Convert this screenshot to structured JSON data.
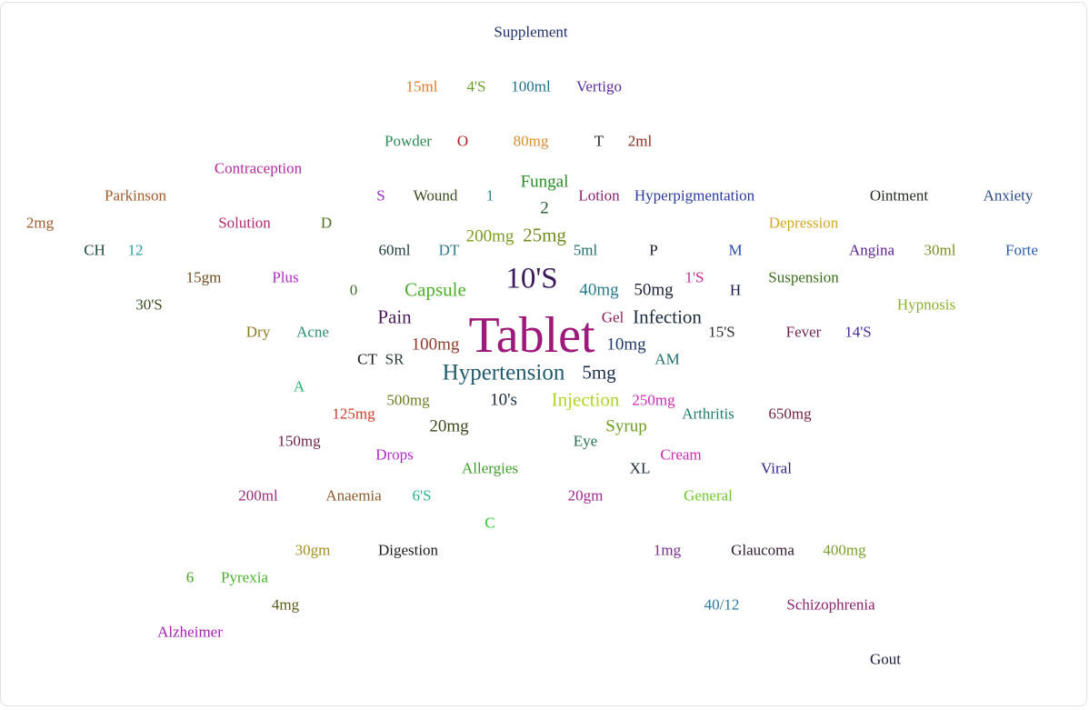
{
  "word_cloud": {
    "words": [
      {
        "text": "Supplement",
        "weight": 1,
        "color": "#1f2f6e"
      },
      {
        "text": "15ml",
        "weight": 1,
        "color": "#e07a1f"
      },
      {
        "text": "4'S",
        "weight": 1,
        "color": "#6b9e2a"
      },
      {
        "text": "100ml",
        "weight": 1,
        "color": "#1f6e8c"
      },
      {
        "text": "Vertigo",
        "weight": 1,
        "color": "#5a2a9e"
      },
      {
        "text": "Powder",
        "weight": 1,
        "color": "#2a8c55"
      },
      {
        "text": "O",
        "weight": 1,
        "color": "#b02020"
      },
      {
        "text": "80mg",
        "weight": 1,
        "color": "#e08a2a"
      },
      {
        "text": "T",
        "weight": 1,
        "color": "#222222"
      },
      {
        "text": "2ml",
        "weight": 1,
        "color": "#8c2a1f"
      },
      {
        "text": "Contraception",
        "weight": 1,
        "color": "#b02a9e"
      },
      {
        "text": "Fungal",
        "weight": 2,
        "color": "#2a8c2a"
      },
      {
        "text": "Parkinson",
        "weight": 1,
        "color": "#a05a2a"
      },
      {
        "text": "S",
        "weight": 1,
        "color": "#9e2ac8"
      },
      {
        "text": "Wound",
        "weight": 1,
        "color": "#3a4a1f"
      },
      {
        "text": "1",
        "weight": 1,
        "color": "#2a8c8c"
      },
      {
        "text": "2",
        "weight": 2,
        "color": "#1f5a2a"
      },
      {
        "text": "Lotion",
        "weight": 1,
        "color": "#8c1f6e"
      },
      {
        "text": "Hyperpigmentation",
        "weight": 1,
        "color": "#2a3a9e"
      },
      {
        "text": "Ointment",
        "weight": 1,
        "color": "#1f2a1f"
      },
      {
        "text": "Anxiety",
        "weight": 1,
        "color": "#2a4a8c"
      },
      {
        "text": "2mg",
        "weight": 1,
        "color": "#9e5a2a"
      },
      {
        "text": "Solution",
        "weight": 1,
        "color": "#b02a6e"
      },
      {
        "text": "D",
        "weight": 1,
        "color": "#4a6e1f"
      },
      {
        "text": "200mg",
        "weight": 2,
        "color": "#7a9e1f"
      },
      {
        "text": "25mg",
        "weight": 3,
        "color": "#6e8c1f"
      },
      {
        "text": "Depression",
        "weight": 1,
        "color": "#d4a81f"
      },
      {
        "text": "CH",
        "weight": 1,
        "color": "#1f4a3a"
      },
      {
        "text": "12",
        "weight": 1,
        "color": "#2a9e9e"
      },
      {
        "text": "60ml",
        "weight": 1,
        "color": "#1f3a3a"
      },
      {
        "text": "DT",
        "weight": 1,
        "color": "#2a7a8c"
      },
      {
        "text": "5ml",
        "weight": 1,
        "color": "#1f6e6e"
      },
      {
        "text": "P",
        "weight": 1,
        "color": "#1a1a2e"
      },
      {
        "text": "M",
        "weight": 1,
        "color": "#2a4ab0"
      },
      {
        "text": "Angina",
        "weight": 1,
        "color": "#5a1f8c"
      },
      {
        "text": "30ml",
        "weight": 1,
        "color": "#7a8c1f"
      },
      {
        "text": "Forte",
        "weight": 1,
        "color": "#2a5ab0"
      },
      {
        "text": "15gm",
        "weight": 1,
        "color": "#6e4a1f"
      },
      {
        "text": "Plus",
        "weight": 1,
        "color": "#b02ac8"
      },
      {
        "text": "10'S",
        "weight": 5,
        "color": "#3a1a5a"
      },
      {
        "text": "1'S",
        "weight": 1,
        "color": "#c82a8c"
      },
      {
        "text": "Suspension",
        "weight": 1,
        "color": "#3a6e1f"
      },
      {
        "text": "0",
        "weight": 1,
        "color": "#3a6e2a"
      },
      {
        "text": "Capsule",
        "weight": 3,
        "color": "#4ab02a"
      },
      {
        "text": "40mg",
        "weight": 2,
        "color": "#2a7a8c"
      },
      {
        "text": "50mg",
        "weight": 2,
        "color": "#1f1f3a"
      },
      {
        "text": "H",
        "weight": 1,
        "color": "#1a1a4a"
      },
      {
        "text": "30'S",
        "weight": 1,
        "color": "#3a4a1f"
      },
      {
        "text": "Hypnosis",
        "weight": 1,
        "color": "#8cb02a"
      },
      {
        "text": "Pain",
        "weight": 3,
        "color": "#4a1a5a"
      },
      {
        "text": "Tablet",
        "weight": 10,
        "color": "#9e1a7a"
      },
      {
        "text": "Gel",
        "weight": 1,
        "color": "#8c1f5a"
      },
      {
        "text": "Infection",
        "weight": 3,
        "color": "#1a2a3a"
      },
      {
        "text": "Dry",
        "weight": 1,
        "color": "#8c7a1f"
      },
      {
        "text": "Acne",
        "weight": 1,
        "color": "#2a8c6e"
      },
      {
        "text": "100mg",
        "weight": 2,
        "color": "#8c3a2a"
      },
      {
        "text": "10mg",
        "weight": 2,
        "color": "#1f3a6e"
      },
      {
        "text": "15'S",
        "weight": 1,
        "color": "#2a2a2a"
      },
      {
        "text": "Fever",
        "weight": 1,
        "color": "#6e1f4a"
      },
      {
        "text": "14'S",
        "weight": 1,
        "color": "#4a2a9e"
      },
      {
        "text": "CT",
        "weight": 1,
        "color": "#1a1a1a"
      },
      {
        "text": "SR",
        "weight": 1,
        "color": "#2a3a3a"
      },
      {
        "text": "AM",
        "weight": 1,
        "color": "#1f6e6e"
      },
      {
        "text": "Hypertension",
        "weight": 4,
        "color": "#1f5a6e"
      },
      {
        "text": "5mg",
        "weight": 3,
        "color": "#1a2a4a"
      },
      {
        "text": "A",
        "weight": 1,
        "color": "#2ab06e"
      },
      {
        "text": "500mg",
        "weight": 1,
        "color": "#6e7a1f"
      },
      {
        "text": "10's",
        "weight": 2,
        "color": "#1a2a3a"
      },
      {
        "text": "Injection",
        "weight": 3,
        "color": "#b0d42a"
      },
      {
        "text": "250mg",
        "weight": 1,
        "color": "#c82ab0"
      },
      {
        "text": "125mg",
        "weight": 1,
        "color": "#c83a2a"
      },
      {
        "text": "Arthritis",
        "weight": 1,
        "color": "#1f7a6e"
      },
      {
        "text": "650mg",
        "weight": 1,
        "color": "#6e1f3a"
      },
      {
        "text": "20mg",
        "weight": 2,
        "color": "#3a4a1f"
      },
      {
        "text": "Syrup",
        "weight": 2,
        "color": "#6e9e1f"
      },
      {
        "text": "150mg",
        "weight": 1,
        "color": "#6e1f4a"
      },
      {
        "text": "Eye",
        "weight": 1,
        "color": "#1f6e4a"
      },
      {
        "text": "Drops",
        "weight": 1,
        "color": "#b02ac8"
      },
      {
        "text": "Cream",
        "weight": 1,
        "color": "#c82ab0"
      },
      {
        "text": "Allergies",
        "weight": 1,
        "color": "#3a9e2a"
      },
      {
        "text": "XL",
        "weight": 1,
        "color": "#1a2a3a"
      },
      {
        "text": "Viral",
        "weight": 1,
        "color": "#2a1f8c"
      },
      {
        "text": "200ml",
        "weight": 1,
        "color": "#9e2a7a"
      },
      {
        "text": "Anaemia",
        "weight": 1,
        "color": "#8c5a2a"
      },
      {
        "text": "6'S",
        "weight": 1,
        "color": "#2ab08c"
      },
      {
        "text": "20gm",
        "weight": 1,
        "color": "#9e2a8c"
      },
      {
        "text": "General",
        "weight": 1,
        "color": "#6ec82a"
      },
      {
        "text": "C",
        "weight": 1,
        "color": "#2ac82a"
      },
      {
        "text": "30gm",
        "weight": 1,
        "color": "#a08c1f"
      },
      {
        "text": "Digestion",
        "weight": 1,
        "color": "#1a1a1a"
      },
      {
        "text": "1mg",
        "weight": 1,
        "color": "#7a2a8c"
      },
      {
        "text": "Glaucoma",
        "weight": 1,
        "color": "#2a1a2a"
      },
      {
        "text": "400mg",
        "weight": 1,
        "color": "#7a9e2a"
      },
      {
        "text": "6",
        "weight": 1,
        "color": "#4a9e1f"
      },
      {
        "text": "Pyrexia",
        "weight": 1,
        "color": "#4ab02a"
      },
      {
        "text": "4mg",
        "weight": 1,
        "color": "#5a5a1f"
      },
      {
        "text": "40/12",
        "weight": 1,
        "color": "#2a7aa0"
      },
      {
        "text": "Schizophrenia",
        "weight": 1,
        "color": "#8c1f6e"
      },
      {
        "text": "Alzheimer",
        "weight": 1,
        "color": "#9e1fb0"
      },
      {
        "text": "Gout",
        "weight": 1,
        "color": "#1a1a3a"
      }
    ]
  }
}
